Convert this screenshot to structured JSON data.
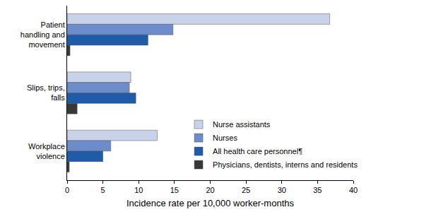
{
  "chart_data": {
    "type": "bar",
    "orientation": "horizontal",
    "xlabel": "Incidence rate per 10,000 worker-months",
    "categories": [
      "Patient handling and movement",
      "Slips, trips, falls",
      "Workplace violence"
    ],
    "series": [
      {
        "name": "Nurse assistants",
        "color": "#c8d3ea",
        "values": [
          36.7,
          8.9,
          12.6
        ]
      },
      {
        "name": "Nurses",
        "color": "#6d8ccc",
        "values": [
          14.8,
          8.7,
          6.1
        ]
      },
      {
        "name": "All health care personnel¶",
        "color": "#1f5ba8",
        "values": [
          11.3,
          9.6,
          5.0
        ]
      },
      {
        "name": "Physicians, dentists, interns and residents",
        "color": "#383838",
        "values": [
          0.4,
          1.4,
          0.3
        ]
      }
    ],
    "xlim": [
      0,
      40
    ],
    "xticks": [
      0,
      5,
      10,
      15,
      20,
      25,
      30,
      35,
      40
    ],
    "grid": false,
    "legend": "right"
  }
}
